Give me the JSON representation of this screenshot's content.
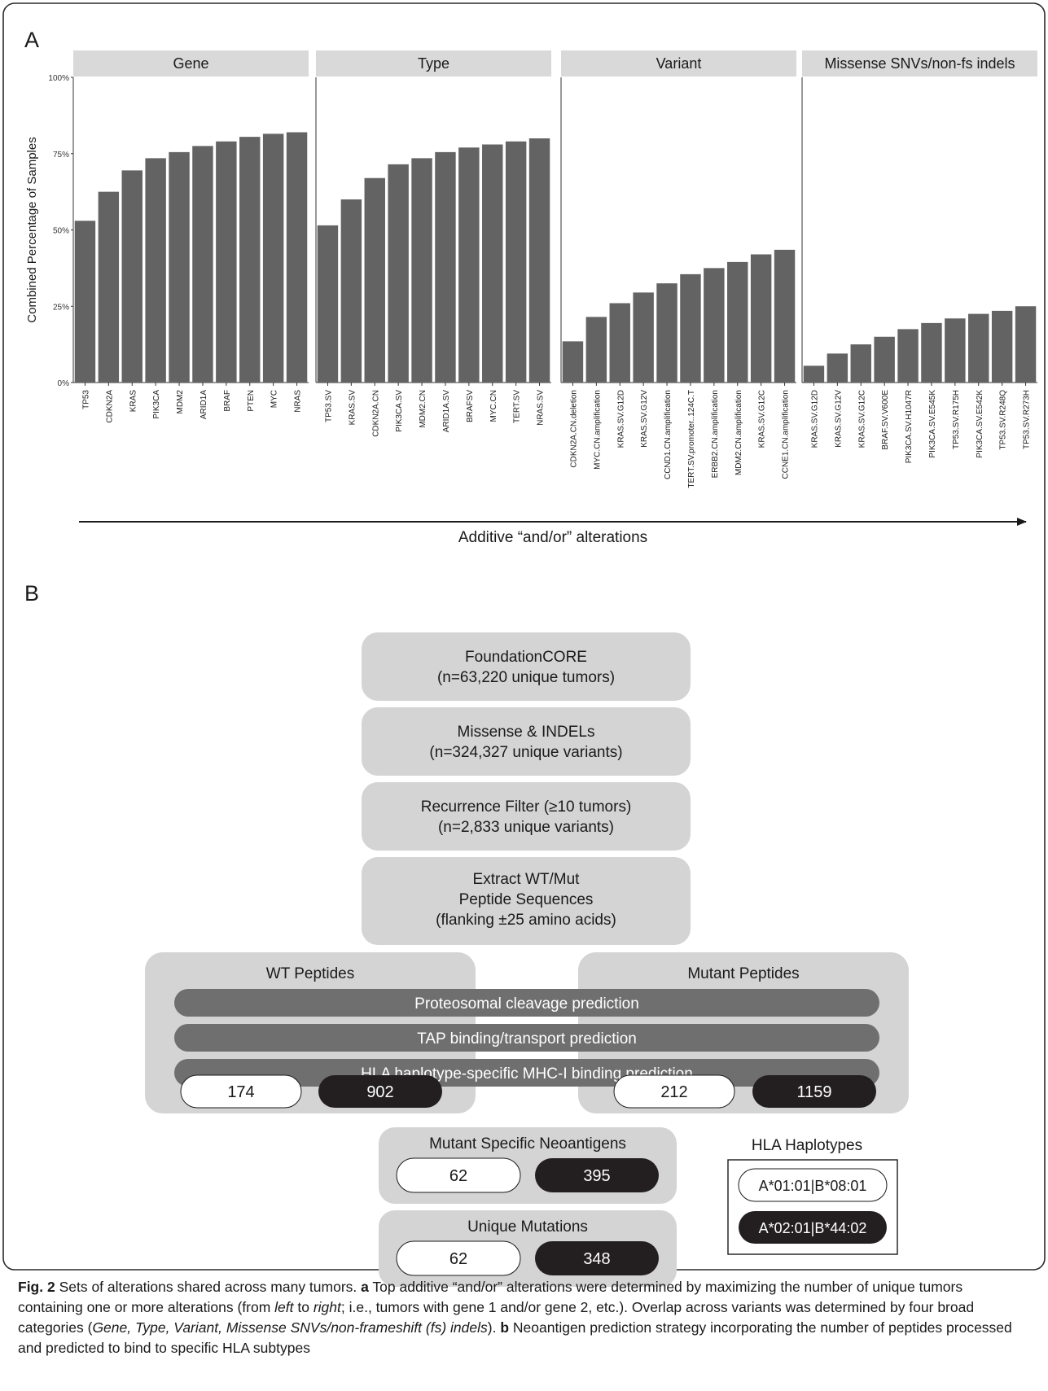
{
  "panel_a": {
    "letter": "A"
  },
  "panel_b": {
    "letter": "B"
  },
  "chart_data": [
    {
      "type": "bar",
      "facet": "Gene",
      "categories": [
        "TP53",
        "CDKN2A",
        "KRAS",
        "PIK3CA",
        "MDM2",
        "ARID1A",
        "BRAF",
        "PTEN",
        "MYC",
        "NRAS"
      ],
      "values": [
        53,
        62.5,
        69.5,
        73.5,
        75.5,
        77.5,
        79,
        80.5,
        81.5,
        82
      ],
      "ylabel": "Combined Percentage of Samples",
      "ylim": [
        0,
        100
      ],
      "yticks": [
        "0%",
        "25%",
        "50%",
        "75%",
        "100%"
      ]
    },
    {
      "type": "bar",
      "facet": "Type",
      "categories": [
        "TP53.SV",
        "KRAS.SV",
        "CDKN2A.CN",
        "PIK3CA.SV",
        "MDM2.CN",
        "ARID1A.SV",
        "BRAFSV",
        "MYC.CN",
        "TERT.SV",
        "NRAS.SV"
      ],
      "values": [
        51.5,
        60,
        67,
        71.5,
        73.5,
        75.5,
        77,
        78,
        79,
        80
      ],
      "ylim": [
        0,
        100
      ]
    },
    {
      "type": "bar",
      "facet": "Variant",
      "categories": [
        "CDKN2A.CN.deletion",
        "MYC.CN.amplification",
        "KRAS.SV.G12D",
        "KRAS.SV.G12V",
        "CCND1.CN.amplification",
        "TERT.SV.promoter..124C.T",
        "ERBB2.CN.amplification",
        "MDM2.CN.amplification",
        "KRAS.SV.G12C",
        "CCNE1.CN.amplification"
      ],
      "values": [
        13.5,
        21.5,
        26,
        29.5,
        32.5,
        35.5,
        37.5,
        39.5,
        42,
        43.5
      ],
      "ylim": [
        0,
        100
      ]
    },
    {
      "type": "bar",
      "facet": "Missense SNVs/non-fs indels",
      "categories": [
        "KRAS.SV.G12D",
        "KRAS.SV.G12V",
        "KRAS.SV.G12C",
        "BRAF.SV.V600E",
        "PIK3CA.SV.H1047R",
        "PIK3CA.SV.E545K",
        "TP53.SV.R175H",
        "PIK3CA.SV.E542K",
        "TP53.SV.R248Q",
        "TP53.SV.R273H"
      ],
      "values": [
        5.5,
        9.5,
        12.5,
        15,
        17.5,
        19.5,
        21,
        22.5,
        23.5,
        25
      ],
      "ylim": [
        0,
        100
      ]
    }
  ],
  "arrow_label": "Additive “and/or” alterations",
  "colors": {
    "bar": "#636363",
    "strip": "#d9d9d9",
    "box": "#d4d4d4",
    "band": "#6f6f6f",
    "dark": "#231f20"
  },
  "flow": {
    "step1": {
      "line1": "FoundationCORE",
      "line2": "(n=63,220 unique tumors)"
    },
    "step2": {
      "line1": "Missense & INDELs",
      "line2": "(n=324,327 unique variants)"
    },
    "step3": {
      "line1": "Recurrence Filter (≥10 tumors)",
      "line2": "(n=2,833 unique variants)"
    },
    "step4": {
      "line1": "Extract WT/Mut",
      "line2": "Peptide Sequences",
      "line3": "(flanking ±25 amino acids)"
    },
    "wt_title": "WT Peptides",
    "mut_title": "Mutant Peptides",
    "band1": "Proteosomal cleavage prediction",
    "band2": "TAP binding/transport prediction",
    "band3": "HLA haplotype-specific MHC-I binding prediction",
    "wt_counts": {
      "light": "174",
      "dark": "902"
    },
    "mut_counts": {
      "light": "212",
      "dark": "1159"
    },
    "neo": {
      "title": "Mutant Specific Neoantigens",
      "light": "62",
      "dark": "395"
    },
    "unique": {
      "title": "Unique Mutations",
      "light": "62",
      "dark": "348"
    },
    "legend": {
      "title": "HLA Haplotypes",
      "light": "A*01:01|B*08:01",
      "dark": "A*02:01|B*44:02"
    }
  },
  "caption": {
    "fig": "Fig. 2",
    "main": " Sets of alterations shared across many tumors. ",
    "a": "a",
    "t1": " Top additive “and/or” alterations were determined by maximizing the number of unique tumors containing one or more alterations (from ",
    "left": "left",
    "t2": " to ",
    "right": "right",
    "t3": "; i.e., tumors with gene 1 and/or gene 2, etc.). Overlap across variants was determined by four broad categories (",
    "cats": "Gene, Type, Variant, Missense SNVs/non-frameshift (fs) indels",
    "t4": "). ",
    "b": "b",
    "t5": " Neoantigen prediction strategy incorporating the number of peptides processed and predicted to bind to specific HLA subtypes"
  }
}
